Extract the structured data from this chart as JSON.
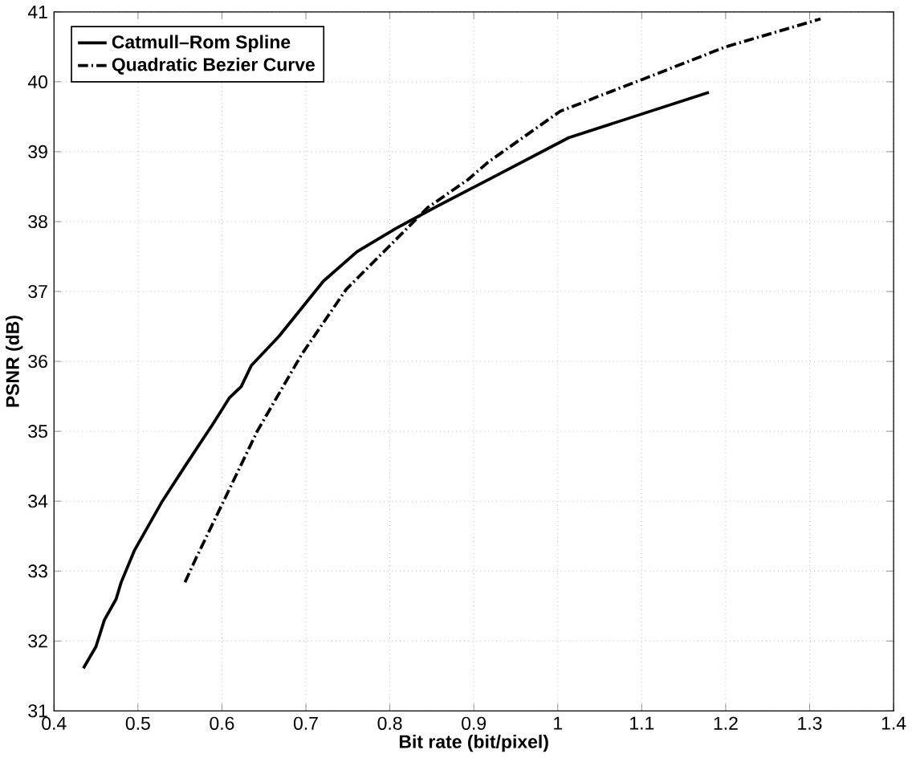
{
  "chart_data": {
    "type": "line",
    "xlabel": "Bit rate (bit/pixel)",
    "ylabel": "PSNR (dB)",
    "xlim": [
      0.4,
      1.4
    ],
    "xticks": [
      0.4,
      0.5,
      0.6,
      0.7,
      0.8,
      0.9,
      1,
      1.1,
      1.2,
      1.3,
      1.4
    ],
    "ylim": [
      31,
      41
    ],
    "yticks": [
      31,
      32,
      33,
      34,
      35,
      36,
      37,
      38,
      39,
      40,
      41
    ],
    "grid": true,
    "legend": "top left",
    "marker": "none",
    "series": [
      {
        "name": "Catmull–Rom Spline",
        "color": "#000000",
        "line_style": "solid",
        "x": [
          0.435,
          0.45,
          0.46,
          0.474,
          0.48,
          0.496,
          0.529,
          0.556,
          0.589,
          0.609,
          0.623,
          0.635,
          0.668,
          0.721,
          0.761,
          0.807,
          0.85,
          0.93,
          1.013,
          1.18
        ],
        "values": [
          31.61,
          31.92,
          32.3,
          32.6,
          32.84,
          33.3,
          34.0,
          34.5,
          35.1,
          35.48,
          35.64,
          35.94,
          36.36,
          37.15,
          37.57,
          37.9,
          38.18,
          38.68,
          39.2,
          39.85
        ]
      },
      {
        "name": "Quadratic Bezier Curve",
        "color": "#000000",
        "line_style": "dashdot",
        "x": [
          0.556,
          0.569,
          0.602,
          0.642,
          0.695,
          0.748,
          0.807,
          0.845,
          0.893,
          0.917,
          1.003,
          1.102,
          1.2,
          1.313
        ],
        "values": [
          32.84,
          33.18,
          34.0,
          35.0,
          36.1,
          37.03,
          37.74,
          38.2,
          38.6,
          38.85,
          39.58,
          40.04,
          40.5,
          40.9
        ]
      }
    ]
  }
}
